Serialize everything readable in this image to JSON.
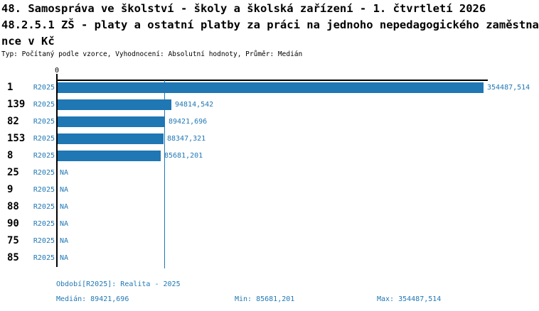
{
  "header": {
    "title_line1": "48. Samospráva ve školství - školy a školská zařízení - 1. čtvrtletí 2026",
    "title_line2": "48.2.5.1 ZŠ - platy a ostatní platby za práci na jednoho nepedagogického zaměstna",
    "title_line3": "nce v Kč",
    "meta_line": "Typ: Počítaný podle vzorce, Vyhodnocení: Absolutní hodnoty, Průměr: Medián"
  },
  "chart_data": {
    "type": "bar",
    "orientation": "horizontal",
    "title": "48.2.5.1 ZŠ - platy a ostatní platby za práci na jednoho nepedagogického zaměstnance v Kč",
    "categories": [
      "1",
      "139",
      "82",
      "153",
      "8",
      "25",
      "9",
      "88",
      "90",
      "75",
      "85"
    ],
    "series": [
      {
        "name": "R2025",
        "values": [
          354487.514,
          94814.542,
          89421.696,
          88347.321,
          85681.201,
          null,
          null,
          null,
          null,
          null,
          null
        ]
      }
    ],
    "value_labels": [
      "354487,514",
      "94814,542",
      "89421,696",
      "88347,321",
      "85681,201",
      "NA",
      "NA",
      "NA",
      "NA",
      "NA",
      "NA"
    ],
    "axis_tick_label": "0",
    "xlim": [
      0,
      354487.514
    ],
    "median_line_value": 89421.696,
    "bar_color": "#1F77B4",
    "grid": false,
    "legend_position": "none"
  },
  "footer": {
    "period_label": "Období[R2025]: Realita - 2025",
    "median_label": "Medián: 89421,696",
    "min_label": "Min: 85681,201",
    "max_label": "Max: 354487,514"
  },
  "colors": {
    "accent_blue": "#1F77B4",
    "text_black": "#000000",
    "background": "#FFFFFF"
  }
}
